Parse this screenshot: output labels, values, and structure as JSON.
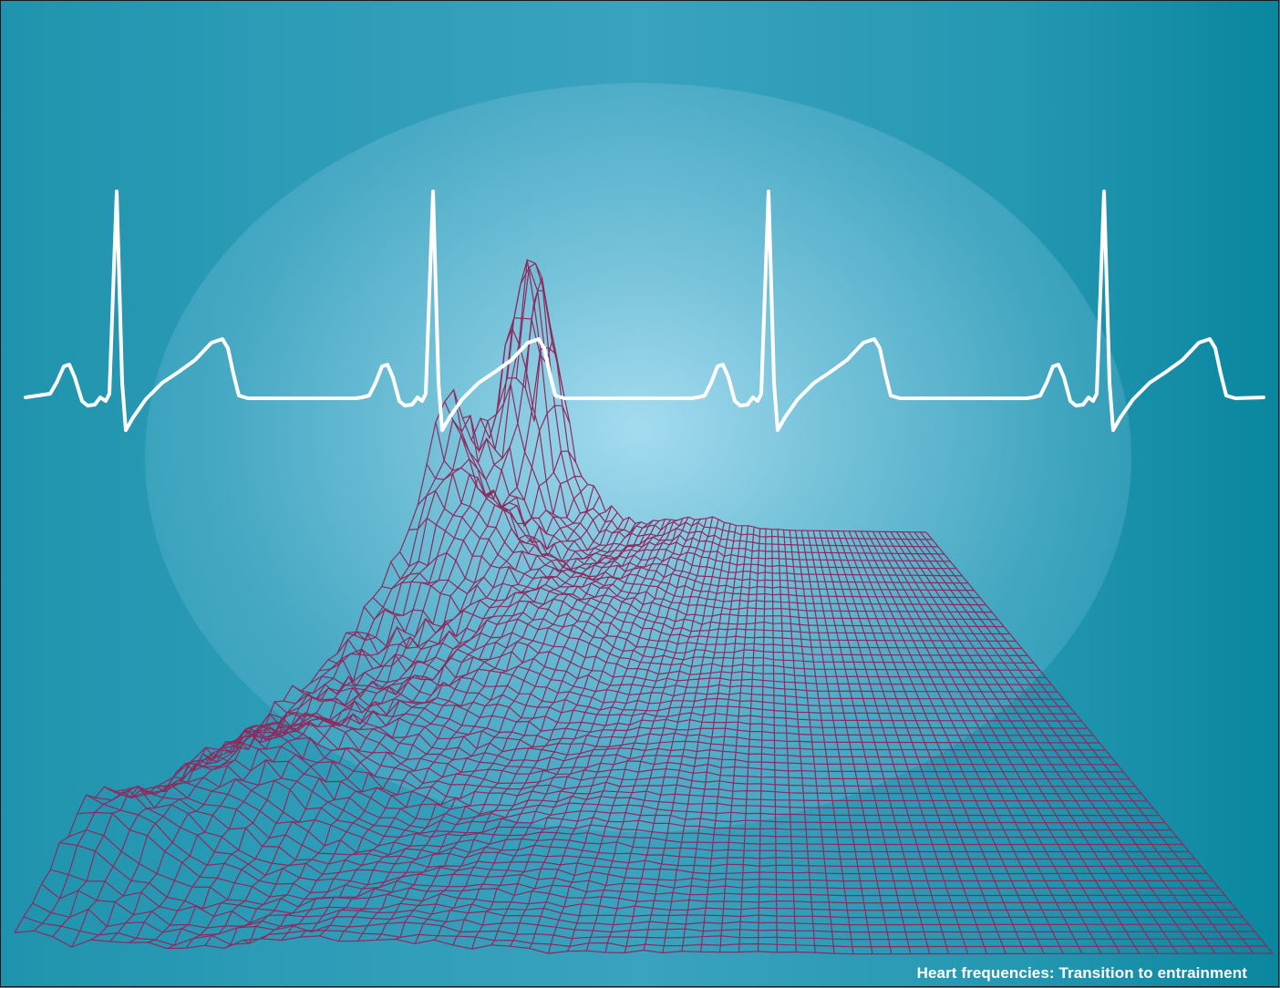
{
  "figure": {
    "caption": "Heart frequencies: Transition to entrainment",
    "colors": {
      "background_center": "#a8dcf0",
      "background_edge": "#0a869f",
      "ecg_trace": "#ffffff",
      "mesh": "#8e2a5e",
      "caption_text": "#ffffff"
    },
    "ecg": {
      "beats": 4
    },
    "mesh": {
      "style": "wireframe surface",
      "peak_location": "rear-left"
    }
  }
}
